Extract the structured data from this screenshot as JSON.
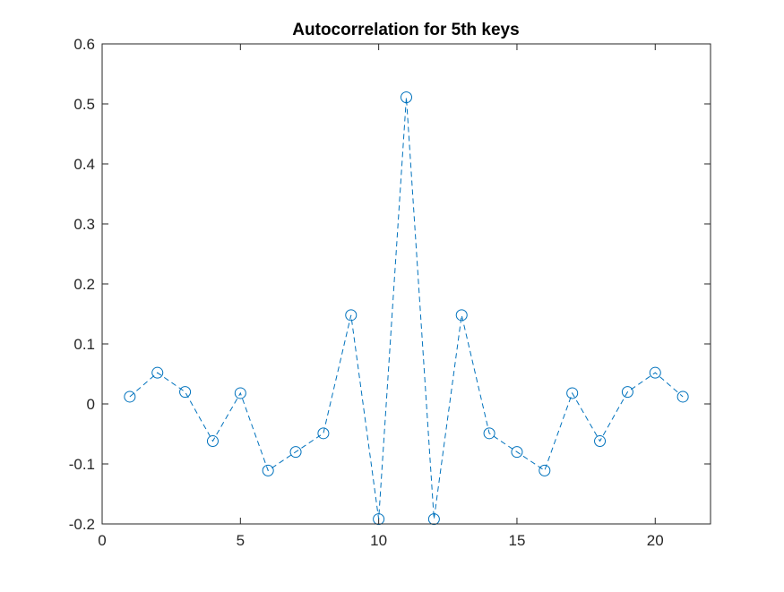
{
  "chart_data": {
    "type": "line",
    "title": "Autocorrelation for 5th keys",
    "xlabel": "",
    "ylabel": "",
    "xlim": [
      0,
      22
    ],
    "ylim": [
      -0.2,
      0.6
    ],
    "xticks": [
      0,
      5,
      10,
      15,
      20
    ],
    "yticks": [
      -0.2,
      -0.1,
      0,
      0.1,
      0.2,
      0.3,
      0.4,
      0.5,
      0.6
    ],
    "xtick_labels": [
      "0",
      "5",
      "10",
      "15",
      "20"
    ],
    "ytick_labels": [
      "-0.2",
      "-0.1",
      "0",
      "0.1",
      "0.2",
      "0.3",
      "0.4",
      "0.5",
      "0.6"
    ],
    "grid": false,
    "line_style": "dashed",
    "marker": "circle",
    "series": [
      {
        "color": "#0072BD",
        "x": [
          1,
          2,
          3,
          4,
          5,
          6,
          7,
          8,
          9,
          10,
          11,
          12,
          13,
          14,
          15,
          16,
          17,
          18,
          19,
          20,
          21
        ],
        "y": [
          0.012,
          0.052,
          0.02,
          -0.062,
          0.018,
          -0.111,
          -0.08,
          -0.049,
          0.148,
          -0.192,
          0.511,
          -0.192,
          0.148,
          -0.049,
          -0.08,
          -0.111,
          0.018,
          -0.062,
          0.02,
          0.052,
          0.012
        ]
      }
    ]
  }
}
